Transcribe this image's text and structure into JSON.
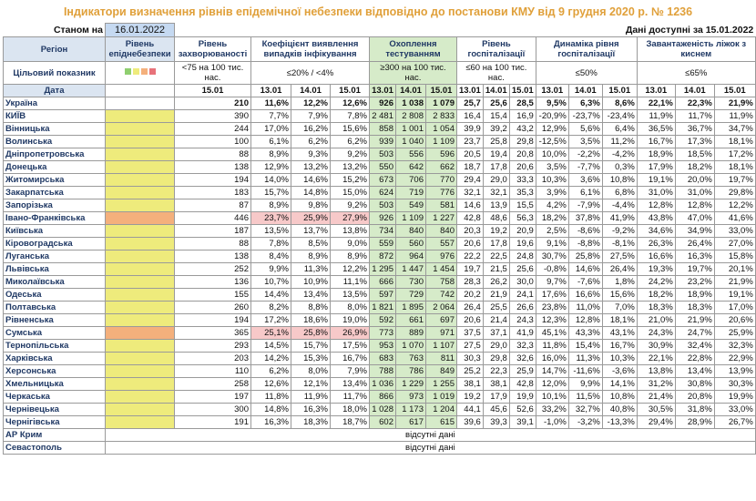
{
  "header": {
    "title": "Індикатори визначення рівнів епідемічної небезпеки відповідно до постанови КМУ від 9 грудня 2020 р. № 1236",
    "as_of_label": "Станом на",
    "as_of_date": "16.01.2022",
    "data_available": "Дані доступні за 15.01.2022"
  },
  "table": {
    "region_header": "Регіон",
    "level_header": "Рівень епіднебезпеки",
    "target_label": "Цільовий показник",
    "date_label": "Дата",
    "groups": [
      {
        "name": "Рівень захворюваності",
        "target": "<75 на 100 тис. нас.",
        "dates": [
          "15.01"
        ]
      },
      {
        "name": "Коефіцієнт виявлення випадків інфікування",
        "target": "≤20% / <4%",
        "dates": [
          "13.01",
          "14.01",
          "15.01"
        ]
      },
      {
        "name": "Охоплення тестуванням",
        "target": "≥300 на 100 тис. нас.",
        "dates": [
          "13.01",
          "14.01",
          "15.01"
        ],
        "fill": "#d6ebc9"
      },
      {
        "name": "Рівень госпіталізації",
        "target": "≤60 на 100 тис. нас.",
        "dates": [
          "13.01",
          "14.01",
          "15.01"
        ]
      },
      {
        "name": "Динаміка рівня госпіталізації",
        "target": "≤50%",
        "dates": [
          "13.01",
          "14.01",
          "15.01"
        ]
      },
      {
        "name": "Завантаженість ліжок з киснем",
        "target": "≤65%",
        "dates": [
          "13.01",
          "14.01",
          "15.01"
        ]
      }
    ],
    "rows": [
      {
        "region": "Україна",
        "bold": true,
        "values": [
          [
            "210"
          ],
          [
            "11,6%",
            "12,2%",
            "12,6%"
          ],
          [
            "926",
            "1 038",
            "1 079"
          ],
          [
            "25,7",
            "25,6",
            "28,5"
          ],
          [
            "9,5%",
            "6,3%",
            "8,6%"
          ],
          [
            "22,1%",
            "22,3%",
            "21,9%"
          ]
        ]
      },
      {
        "region": "КИЇВ",
        "level_color": "#eeeb7c",
        "values": [
          [
            "390"
          ],
          [
            "7,7%",
            "7,9%",
            "7,8%"
          ],
          [
            "2 481",
            "2 808",
            "2 833"
          ],
          [
            "16,4",
            "15,4",
            "16,9"
          ],
          [
            "-20,9%",
            "-23,7%",
            "-23,4%"
          ],
          [
            "11,9%",
            "11,7%",
            "11,9%"
          ]
        ]
      },
      {
        "region": "Вінницька",
        "level_color": "#eeeb7c",
        "values": [
          [
            "244"
          ],
          [
            "17,0%",
            "16,2%",
            "15,6%"
          ],
          [
            "858",
            "1 001",
            "1 054"
          ],
          [
            "39,9",
            "39,2",
            "43,2"
          ],
          [
            "12,9%",
            "5,6%",
            "6,4%"
          ],
          [
            "36,5%",
            "36,7%",
            "34,7%"
          ]
        ]
      },
      {
        "region": "Волинська",
        "level_color": "#eeeb7c",
        "values": [
          [
            "100"
          ],
          [
            "6,1%",
            "6,2%",
            "6,2%"
          ],
          [
            "939",
            "1 040",
            "1 109"
          ],
          [
            "23,7",
            "25,8",
            "29,8"
          ],
          [
            "-12,5%",
            "3,5%",
            "11,2%"
          ],
          [
            "16,7%",
            "17,3%",
            "18,1%"
          ]
        ]
      },
      {
        "region": "Дніпропетровська",
        "level_color": "#eeeb7c",
        "values": [
          [
            "88"
          ],
          [
            "8,9%",
            "9,3%",
            "9,2%"
          ],
          [
            "503",
            "556",
            "596"
          ],
          [
            "20,5",
            "19,4",
            "20,8"
          ],
          [
            "10,0%",
            "-2,2%",
            "-4,2%"
          ],
          [
            "18,9%",
            "18,5%",
            "17,2%"
          ]
        ]
      },
      {
        "region": "Донецька",
        "level_color": "#eeeb7c",
        "values": [
          [
            "138"
          ],
          [
            "12,9%",
            "13,2%",
            "13,2%"
          ],
          [
            "550",
            "642",
            "662"
          ],
          [
            "18,7",
            "17,8",
            "20,6"
          ],
          [
            "3,5%",
            "-7,7%",
            "0,3%"
          ],
          [
            "17,9%",
            "18,2%",
            "18,1%"
          ]
        ]
      },
      {
        "region": "Житомирська",
        "level_color": "#eeeb7c",
        "values": [
          [
            "194"
          ],
          [
            "14,0%",
            "14,6%",
            "15,2%"
          ],
          [
            "673",
            "706",
            "770"
          ],
          [
            "29,4",
            "29,0",
            "33,3"
          ],
          [
            "10,3%",
            "3,6%",
            "10,8%"
          ],
          [
            "19,1%",
            "20,0%",
            "19,7%"
          ]
        ]
      },
      {
        "region": "Закарпатська",
        "level_color": "#eeeb7c",
        "values": [
          [
            "183"
          ],
          [
            "15,7%",
            "14,8%",
            "15,0%"
          ],
          [
            "624",
            "719",
            "776"
          ],
          [
            "32,1",
            "32,1",
            "35,3"
          ],
          [
            "3,9%",
            "6,1%",
            "6,8%"
          ],
          [
            "31,0%",
            "31,0%",
            "29,8%"
          ]
        ]
      },
      {
        "region": "Запорізька",
        "level_color": "#eeeb7c",
        "values": [
          [
            "87"
          ],
          [
            "8,9%",
            "9,8%",
            "9,2%"
          ],
          [
            "503",
            "549",
            "581"
          ],
          [
            "14,6",
            "13,9",
            "15,5"
          ],
          [
            "4,2%",
            "-7,9%",
            "-4,4%"
          ],
          [
            "12,8%",
            "12,8%",
            "12,2%"
          ]
        ]
      },
      {
        "region": "Івано-Франківська",
        "level_color": "#f4b07c",
        "highlight_group": 1,
        "values": [
          [
            "446"
          ],
          [
            "23,7%",
            "25,9%",
            "27,9%"
          ],
          [
            "926",
            "1 109",
            "1 227"
          ],
          [
            "42,8",
            "48,6",
            "56,3"
          ],
          [
            "18,2%",
            "37,8%",
            "41,9%"
          ],
          [
            "43,8%",
            "47,0%",
            "41,6%"
          ]
        ]
      },
      {
        "region": "Київська",
        "level_color": "#eeeb7c",
        "values": [
          [
            "187"
          ],
          [
            "13,5%",
            "13,7%",
            "13,8%"
          ],
          [
            "734",
            "840",
            "840"
          ],
          [
            "20,3",
            "19,2",
            "20,9"
          ],
          [
            "2,5%",
            "-8,6%",
            "-9,2%"
          ],
          [
            "34,6%",
            "34,9%",
            "33,0%"
          ]
        ]
      },
      {
        "region": "Кіровоградська",
        "level_color": "#eeeb7c",
        "values": [
          [
            "88"
          ],
          [
            "7,8%",
            "8,5%",
            "9,0%"
          ],
          [
            "559",
            "560",
            "557"
          ],
          [
            "20,6",
            "17,8",
            "19,6"
          ],
          [
            "9,1%",
            "-8,8%",
            "-8,1%"
          ],
          [
            "26,3%",
            "26,4%",
            "27,0%"
          ]
        ]
      },
      {
        "region": "Луганська",
        "level_color": "#eeeb7c",
        "values": [
          [
            "138"
          ],
          [
            "8,4%",
            "8,9%",
            "8,9%"
          ],
          [
            "872",
            "964",
            "976"
          ],
          [
            "22,2",
            "22,5",
            "24,8"
          ],
          [
            "30,7%",
            "25,8%",
            "27,5%"
          ],
          [
            "16,6%",
            "16,3%",
            "15,8%"
          ]
        ]
      },
      {
        "region": "Львівська",
        "level_color": "#eeeb7c",
        "values": [
          [
            "252"
          ],
          [
            "9,9%",
            "11,3%",
            "12,2%"
          ],
          [
            "1 295",
            "1 447",
            "1 454"
          ],
          [
            "19,7",
            "21,5",
            "25,6"
          ],
          [
            "-0,8%",
            "14,6%",
            "26,4%"
          ],
          [
            "19,3%",
            "19,7%",
            "20,1%"
          ]
        ]
      },
      {
        "region": "Миколаївська",
        "level_color": "#eeeb7c",
        "values": [
          [
            "136"
          ],
          [
            "10,7%",
            "10,9%",
            "11,1%"
          ],
          [
            "666",
            "730",
            "758"
          ],
          [
            "28,3",
            "26,2",
            "30,0"
          ],
          [
            "9,7%",
            "-7,6%",
            "1,8%"
          ],
          [
            "24,2%",
            "23,2%",
            "21,9%"
          ]
        ]
      },
      {
        "region": "Одеська",
        "level_color": "#eeeb7c",
        "values": [
          [
            "155"
          ],
          [
            "14,4%",
            "13,4%",
            "13,5%"
          ],
          [
            "597",
            "729",
            "742"
          ],
          [
            "20,2",
            "21,9",
            "24,1"
          ],
          [
            "17,6%",
            "16,6%",
            "15,6%"
          ],
          [
            "18,2%",
            "18,9%",
            "19,1%"
          ]
        ]
      },
      {
        "region": "Полтавська",
        "level_color": "#eeeb7c",
        "values": [
          [
            "260"
          ],
          [
            "8,2%",
            "8,8%",
            "8,0%"
          ],
          [
            "1 821",
            "1 895",
            "2 064"
          ],
          [
            "26,4",
            "25,5",
            "26,6"
          ],
          [
            "23,8%",
            "11,0%",
            "7,0%"
          ],
          [
            "18,3%",
            "18,3%",
            "17,0%"
          ]
        ]
      },
      {
        "region": "Рівненська",
        "level_color": "#eeeb7c",
        "values": [
          [
            "194"
          ],
          [
            "17,2%",
            "18,6%",
            "19,0%"
          ],
          [
            "592",
            "661",
            "697"
          ],
          [
            "20,6",
            "21,4",
            "24,3"
          ],
          [
            "12,3%",
            "12,8%",
            "18,1%"
          ],
          [
            "21,0%",
            "21,9%",
            "20,6%"
          ]
        ]
      },
      {
        "region": "Сумська",
        "level_color": "#f4b07c",
        "highlight_group": 1,
        "values": [
          [
            "365"
          ],
          [
            "25,1%",
            "25,8%",
            "26,9%"
          ],
          [
            "773",
            "889",
            "971"
          ],
          [
            "37,5",
            "37,1",
            "41,9"
          ],
          [
            "45,1%",
            "43,3%",
            "43,1%"
          ],
          [
            "24,3%",
            "24,7%",
            "25,9%"
          ]
        ]
      },
      {
        "region": "Тернопільська",
        "level_color": "#eeeb7c",
        "values": [
          [
            "293"
          ],
          [
            "14,5%",
            "15,7%",
            "17,5%"
          ],
          [
            "953",
            "1 070",
            "1 107"
          ],
          [
            "27,5",
            "29,0",
            "32,3"
          ],
          [
            "11,8%",
            "15,4%",
            "16,7%"
          ],
          [
            "30,9%",
            "32,4%",
            "32,3%"
          ]
        ]
      },
      {
        "region": "Харківська",
        "level_color": "#eeeb7c",
        "values": [
          [
            "203"
          ],
          [
            "14,2%",
            "15,3%",
            "16,7%"
          ],
          [
            "683",
            "763",
            "811"
          ],
          [
            "30,3",
            "29,8",
            "32,6"
          ],
          [
            "16,0%",
            "11,3%",
            "10,3%"
          ],
          [
            "22,1%",
            "22,8%",
            "22,9%"
          ]
        ]
      },
      {
        "region": "Херсонська",
        "level_color": "#eeeb7c",
        "values": [
          [
            "110"
          ],
          [
            "6,2%",
            "8,0%",
            "7,9%"
          ],
          [
            "788",
            "786",
            "849"
          ],
          [
            "25,2",
            "22,3",
            "25,9"
          ],
          [
            "14,7%",
            "-11,6%",
            "-3,6%"
          ],
          [
            "13,8%",
            "13,4%",
            "13,9%"
          ]
        ]
      },
      {
        "region": "Хмельницька",
        "level_color": "#eeeb7c",
        "values": [
          [
            "258"
          ],
          [
            "12,6%",
            "12,1%",
            "13,4%"
          ],
          [
            "1 036",
            "1 229",
            "1 255"
          ],
          [
            "38,1",
            "38,1",
            "42,8"
          ],
          [
            "12,0%",
            "9,9%",
            "14,1%"
          ],
          [
            "31,2%",
            "30,8%",
            "30,3%"
          ]
        ]
      },
      {
        "region": "Черкаська",
        "level_color": "#eeeb7c",
        "values": [
          [
            "197"
          ],
          [
            "11,8%",
            "11,9%",
            "11,7%"
          ],
          [
            "866",
            "973",
            "1 019"
          ],
          [
            "19,2",
            "17,9",
            "19,9"
          ],
          [
            "10,1%",
            "11,5%",
            "10,8%"
          ],
          [
            "21,4%",
            "20,8%",
            "19,9%"
          ]
        ]
      },
      {
        "region": "Чернівецька",
        "level_color": "#eeeb7c",
        "values": [
          [
            "300"
          ],
          [
            "14,8%",
            "16,3%",
            "18,0%"
          ],
          [
            "1 028",
            "1 173",
            "1 204"
          ],
          [
            "44,1",
            "45,6",
            "52,6"
          ],
          [
            "33,2%",
            "32,7%",
            "40,8%"
          ],
          [
            "30,5%",
            "31,8%",
            "33,0%"
          ]
        ]
      },
      {
        "region": "Чернігівська",
        "level_color": "#eeeb7c",
        "values": [
          [
            "191"
          ],
          [
            "16,3%",
            "18,3%",
            "18,7%"
          ],
          [
            "602",
            "617",
            "615"
          ],
          [
            "39,6",
            "39,3",
            "39,1"
          ],
          [
            "-1,0%",
            "-3,2%",
            "-13,3%"
          ],
          [
            "29,4%",
            "28,9%",
            "26,7%"
          ]
        ]
      },
      {
        "region": "АР Крим",
        "note": "відсутні дані"
      },
      {
        "region": "Севастополь",
        "note": "відсутні дані"
      }
    ]
  }
}
